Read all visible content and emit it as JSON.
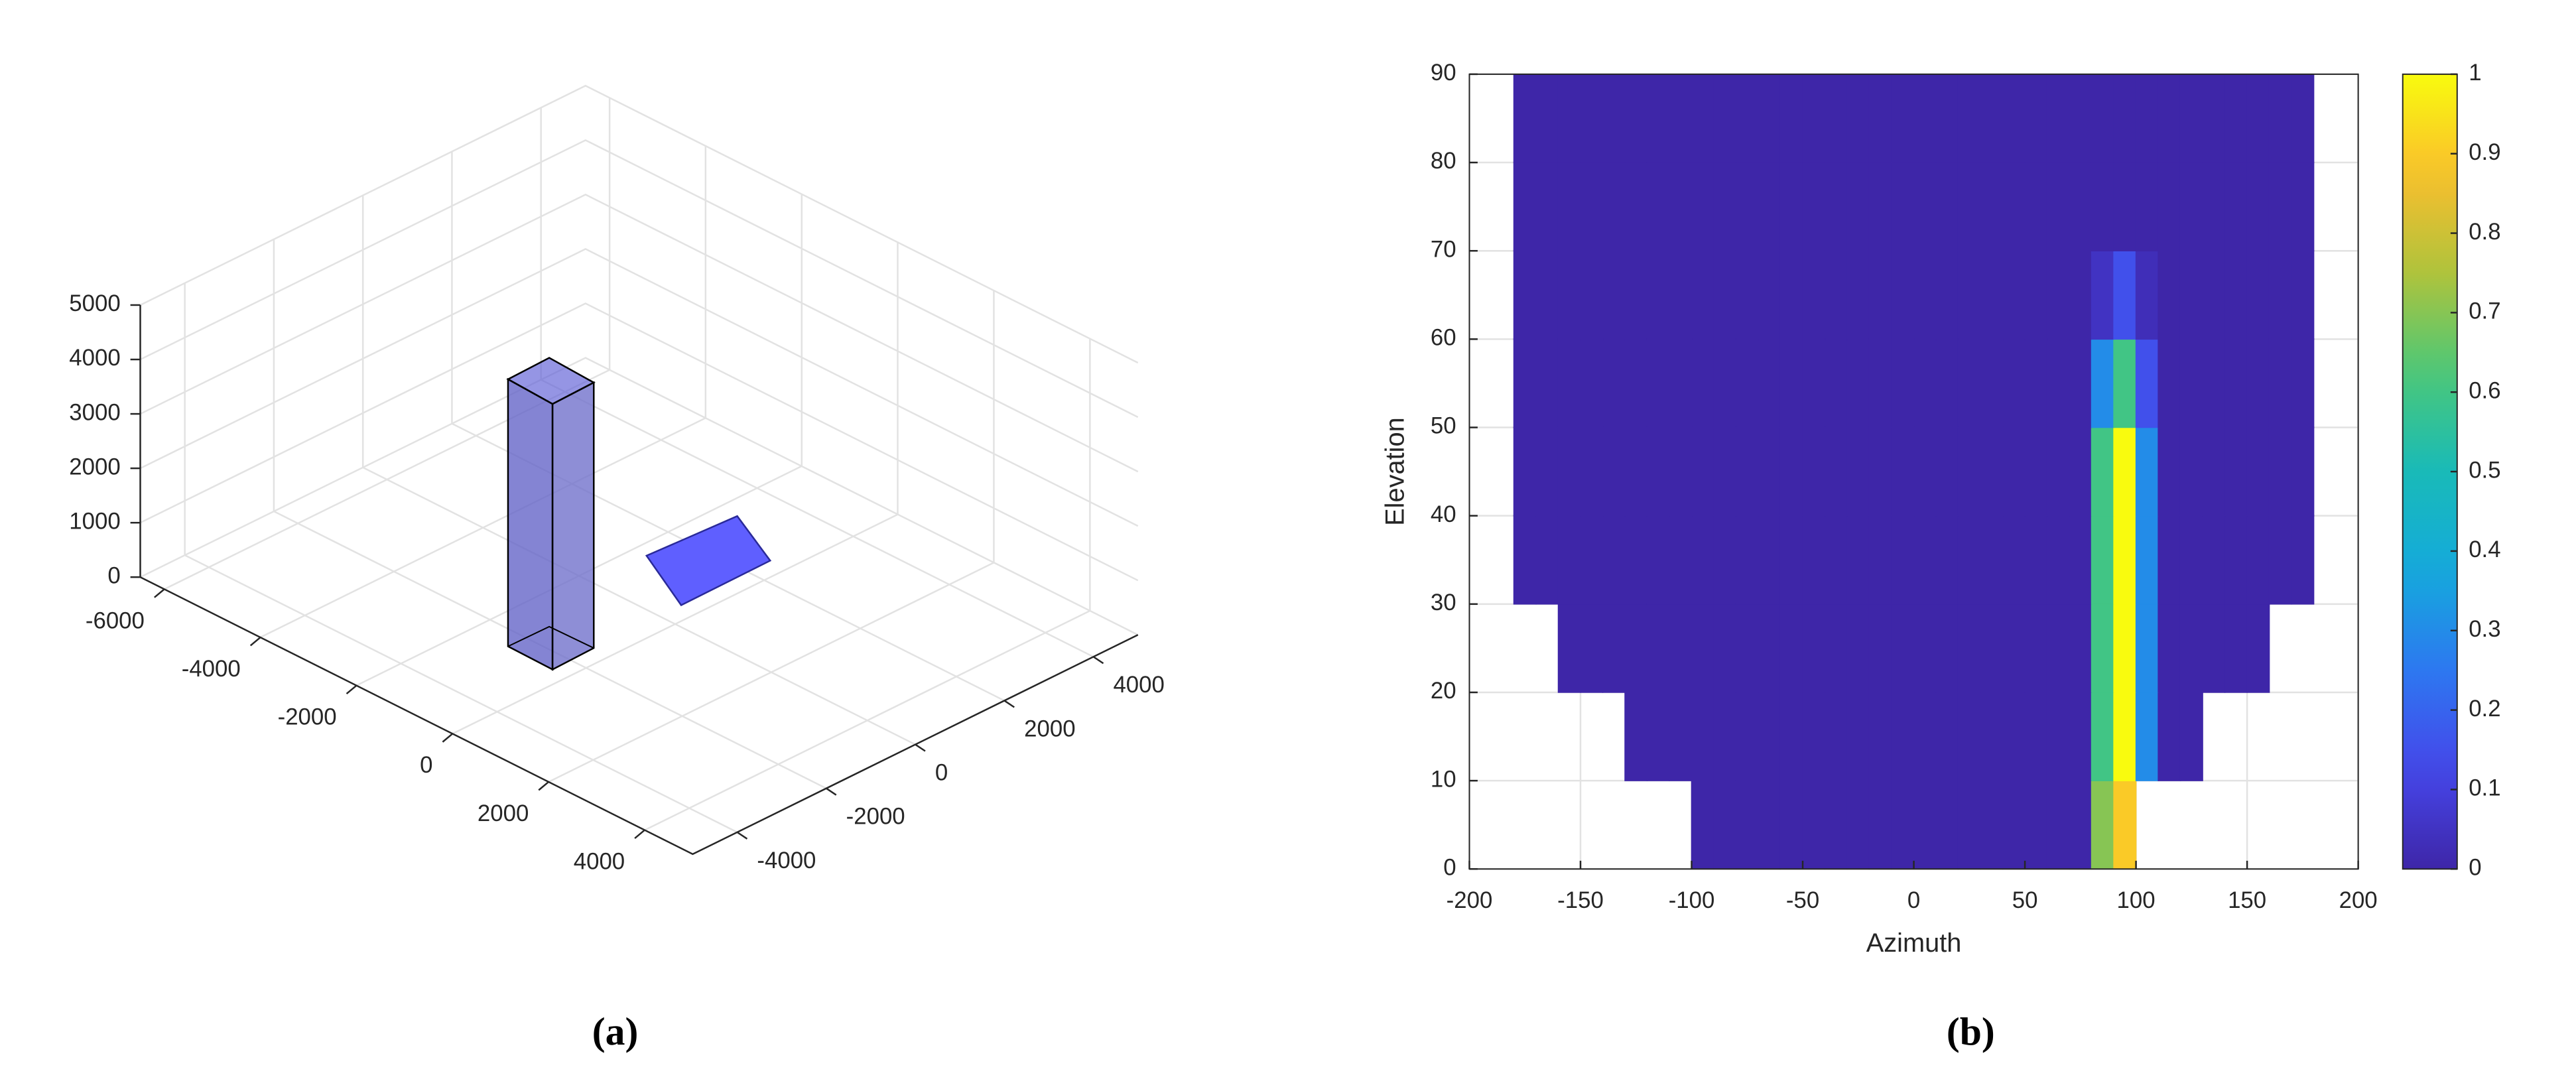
{
  "chart_data": [
    {
      "type": "3d",
      "label": "(a)",
      "xlim": [
        -6500,
        5000
      ],
      "ylim": [
        -5000,
        5000
      ],
      "zlim": [
        0,
        5000
      ],
      "xticks": [
        -6000,
        -4000,
        -2000,
        0,
        2000,
        4000
      ],
      "yticks": [
        -4000,
        -2000,
        0,
        2000,
        4000
      ],
      "zticks": [
        0,
        1000,
        2000,
        3000,
        4000,
        5000
      ],
      "grid": true
    },
    {
      "type": "heatmap",
      "label": "(b)",
      "xlabel": "Azimuth",
      "ylabel": "Elevation",
      "xlim": [
        -200,
        200
      ],
      "ylim": [
        0,
        90
      ],
      "xticks": [
        -200,
        -150,
        -100,
        -50,
        0,
        50,
        100,
        150,
        200
      ],
      "yticks": [
        0,
        10,
        20,
        30,
        40,
        50,
        60,
        70,
        80,
        90
      ],
      "clim": [
        0,
        1
      ],
      "cticks": [
        0,
        0.1,
        0.2,
        0.3,
        0.4,
        0.5,
        0.6,
        0.7,
        0.8,
        0.9,
        1
      ],
      "grid": true,
      "x": [
        -180,
        -170,
        -160,
        -150,
        -140,
        -130,
        -120,
        -110,
        -100,
        -90,
        -80,
        -70,
        -60,
        -50,
        -40,
        -30,
        -20,
        -10,
        0,
        10,
        20,
        30,
        40,
        50,
        60,
        70,
        80,
        90,
        100,
        110,
        120,
        130,
        140,
        150,
        160,
        170,
        180
      ],
      "y": [
        0,
        10,
        20,
        30,
        40,
        50,
        60,
        70,
        80,
        90
      ],
      "z": [
        [
          null,
          null,
          null,
          null,
          null,
          null,
          null,
          null,
          0,
          0,
          0,
          0,
          0,
          0,
          0,
          0,
          0,
          0,
          0,
          0,
          0,
          0,
          0,
          0,
          0,
          0,
          0.7,
          0.9,
          null,
          null,
          null,
          null,
          null,
          null,
          null,
          null
        ],
        [
          null,
          null,
          null,
          null,
          null,
          0,
          0,
          0,
          0,
          0,
          0,
          0,
          0,
          0,
          0,
          0,
          0,
          0,
          0,
          0,
          0,
          0,
          0,
          0,
          0,
          0,
          0.6,
          1,
          0.3,
          0,
          0,
          null,
          null,
          null,
          null,
          null
        ],
        [
          null,
          null,
          0,
          0,
          0,
          0,
          0,
          0,
          0,
          0,
          0,
          0,
          0,
          0,
          0,
          0,
          0,
          0,
          0,
          0,
          0,
          0,
          0,
          0,
          0,
          0,
          0.6,
          1,
          0.3,
          0,
          0,
          0,
          0,
          0,
          null,
          null
        ],
        [
          0,
          0,
          0,
          0,
          0,
          0,
          0,
          0,
          0,
          0,
          0,
          0,
          0,
          0,
          0,
          0,
          0,
          0,
          0,
          0,
          0,
          0,
          0,
          0,
          0,
          0,
          0.6,
          1,
          0.3,
          0,
          0,
          0,
          0,
          0,
          0,
          0
        ],
        [
          0,
          0,
          0,
          0,
          0,
          0,
          0,
          0,
          0,
          0,
          0,
          0,
          0,
          0,
          0,
          0,
          0,
          0,
          0,
          0,
          0,
          0,
          0,
          0,
          0,
          0,
          0.6,
          1,
          0.3,
          0,
          0,
          0,
          0,
          0,
          0,
          0
        ],
        [
          0,
          0,
          0,
          0,
          0,
          0,
          0,
          0,
          0,
          0,
          0,
          0,
          0,
          0,
          0,
          0,
          0,
          0,
          0,
          0,
          0,
          0,
          0,
          0,
          0,
          0,
          0.3,
          0.6,
          0.15,
          0,
          0,
          0,
          0,
          0,
          0,
          0
        ],
        [
          0,
          0,
          0,
          0,
          0,
          0,
          0,
          0,
          0,
          0,
          0,
          0,
          0,
          0,
          0,
          0,
          0,
          0,
          0,
          0,
          0,
          0,
          0,
          0,
          0,
          0,
          0.05,
          0.15,
          0.03,
          0,
          0,
          0,
          0,
          0,
          0,
          0
        ],
        [
          0,
          0,
          0,
          0,
          0,
          0,
          0,
          0,
          0,
          0,
          0,
          0,
          0,
          0,
          0,
          0,
          0,
          0,
          0,
          0,
          0,
          0,
          0,
          0,
          0,
          0,
          0,
          0,
          0,
          0,
          0,
          0,
          0,
          0,
          0,
          0
        ],
        [
          0,
          0,
          0,
          0,
          0,
          0,
          0,
          0,
          0,
          0,
          0,
          0,
          0,
          0,
          0,
          0,
          0,
          0,
          0,
          0,
          0,
          0,
          0,
          0,
          0,
          0,
          0,
          0,
          0,
          0,
          0,
          0,
          0,
          0,
          0,
          0
        ]
      ]
    }
  ]
}
